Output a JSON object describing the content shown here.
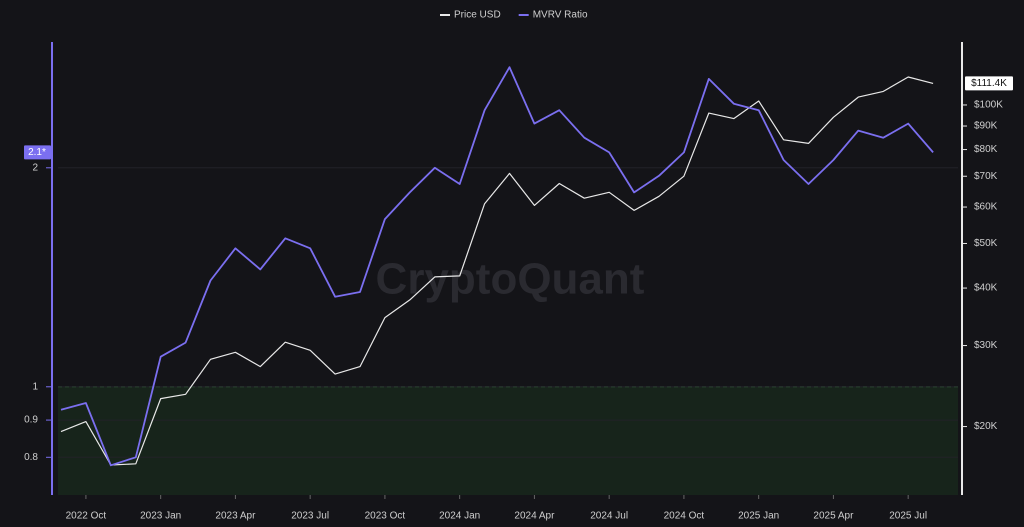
{
  "chart_data": {
    "type": "line",
    "watermark": "CryptoQuant",
    "x": [
      "2022-09",
      "2022-10",
      "2022-11",
      "2022-12",
      "2023-01",
      "2023-02",
      "2023-03",
      "2023-04",
      "2023-05",
      "2023-06",
      "2023-07",
      "2023-08",
      "2023-09",
      "2023-10",
      "2023-11",
      "2023-12",
      "2024-01",
      "2024-02",
      "2024-03",
      "2024-04",
      "2024-05",
      "2024-06",
      "2024-07",
      "2024-08",
      "2024-09",
      "2024-10",
      "2024-11",
      "2024-12",
      "2025-01",
      "2025-02",
      "2025-03",
      "2025-04",
      "2025-05",
      "2025-06",
      "2025-07",
      "2025-08"
    ],
    "xlim": [
      "2022-09",
      "2025-09"
    ],
    "xticks": [
      {
        "value": "2022-10",
        "label": "2022 Oct"
      },
      {
        "value": "2023-01",
        "label": "2023 Jan"
      },
      {
        "value": "2023-04",
        "label": "2023 Apr"
      },
      {
        "value": "2023-07",
        "label": "2023 Jul"
      },
      {
        "value": "2023-10",
        "label": "2023 Oct"
      },
      {
        "value": "2024-01",
        "label": "2024 Jan"
      },
      {
        "value": "2024-04",
        "label": "2024 Apr"
      },
      {
        "value": "2024-07",
        "label": "2024 Jul"
      },
      {
        "value": "2024-10",
        "label": "2024 Oct"
      },
      {
        "value": "2025-01",
        "label": "2025 Jan"
      },
      {
        "value": "2025-04",
        "label": "2025 Apr"
      },
      {
        "value": "2025-07",
        "label": "2025 Jul"
      }
    ],
    "log_y": true,
    "ylim": [
      0.71,
      2.95
    ],
    "yticks": [
      0.8,
      0.9,
      1,
      2
    ],
    "log_y2": true,
    "y2lim": [
      14200,
      135000
    ],
    "y2ticks": [
      {
        "value": 20000,
        "label": "$20K"
      },
      {
        "value": 30000,
        "label": "$30K"
      },
      {
        "value": 40000,
        "label": "$40K"
      },
      {
        "value": 50000,
        "label": "$50K"
      },
      {
        "value": 60000,
        "label": "$60K"
      },
      {
        "value": 70000,
        "label": "$70K"
      },
      {
        "value": 80000,
        "label": "$80K"
      },
      {
        "value": 90000,
        "label": "$90K"
      },
      {
        "value": 100000,
        "label": "$100K"
      }
    ],
    "reference_line": 1,
    "legend": "top",
    "series": [
      {
        "name": "Price USD",
        "color": "#e8e8e8",
        "axis": "y2",
        "values": [
          19500,
          20500,
          16500,
          16600,
          23000,
          23500,
          28000,
          29000,
          27000,
          30500,
          29300,
          26000,
          27000,
          34500,
          37700,
          42300,
          42500,
          61000,
          71000,
          60500,
          67500,
          62700,
          64600,
          59000,
          63300,
          70000,
          96000,
          93400,
          102000,
          84000,
          82500,
          94000,
          104000,
          107000,
          115000,
          111400
        ],
        "badge": {
          "value": 111400,
          "label": "$111.4K"
        }
      },
      {
        "name": "MVRV Ratio",
        "color": "#7b6ff0",
        "axis": "y",
        "values": [
          0.93,
          0.95,
          0.78,
          0.8,
          1.1,
          1.15,
          1.4,
          1.55,
          1.45,
          1.6,
          1.55,
          1.33,
          1.35,
          1.7,
          1.85,
          2.0,
          1.9,
          2.4,
          2.75,
          2.3,
          2.4,
          2.2,
          2.1,
          1.85,
          1.95,
          2.1,
          2.65,
          2.45,
          2.4,
          2.05,
          1.9,
          2.05,
          2.25,
          2.2,
          2.3,
          2.1
        ],
        "badge": {
          "value": 2.1,
          "label": "2.1*"
        }
      }
    ]
  }
}
